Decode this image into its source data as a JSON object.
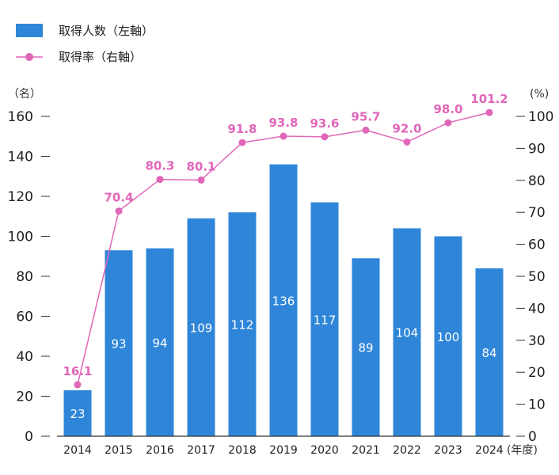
{
  "chart_data": {
    "type": "bar",
    "categories": [
      "2014",
      "2015",
      "2016",
      "2017",
      "2018",
      "2019",
      "2020",
      "2021",
      "2022",
      "2023",
      "2024"
    ],
    "series": [
      {
        "name": "取得人数（左軸）",
        "type": "bar",
        "axis": "left",
        "values": [
          23,
          93,
          94,
          109,
          112,
          136,
          117,
          89,
          104,
          100,
          84
        ]
      },
      {
        "name": "取得率（右軸）",
        "type": "line",
        "axis": "right",
        "values": [
          16.1,
          70.4,
          80.3,
          80.1,
          91.8,
          93.8,
          93.6,
          95.7,
          92.0,
          98.0,
          101.2
        ]
      }
    ],
    "left_axis": {
      "unit": "（名）",
      "ylim": [
        0,
        160
      ],
      "ticks": [
        "0",
        "20",
        "40",
        "60",
        "80",
        "100",
        "120",
        "140",
        "160"
      ]
    },
    "right_axis": {
      "unit": "(%)",
      "ylim": [
        0,
        100
      ],
      "ticks": [
        "0",
        "10",
        "20",
        "30",
        "40",
        "50",
        "60",
        "70",
        "80",
        "90",
        "100"
      ]
    },
    "x_unit": "(年度)",
    "bar_labels": [
      "23",
      "93",
      "94",
      "109",
      "112",
      "136",
      "117",
      "89",
      "104",
      "100",
      "84"
    ],
    "line_labels": [
      "16.1",
      "70.4",
      "80.3",
      "80.1",
      "91.8",
      "93.8",
      "93.6",
      "95.7",
      "92.0",
      "98.0",
      "101.2"
    ],
    "colors": {
      "bar": "#2f86d8",
      "line": "#e066b8",
      "axis": "#333333"
    },
    "legend_placement": "top-left",
    "grid": false
  }
}
